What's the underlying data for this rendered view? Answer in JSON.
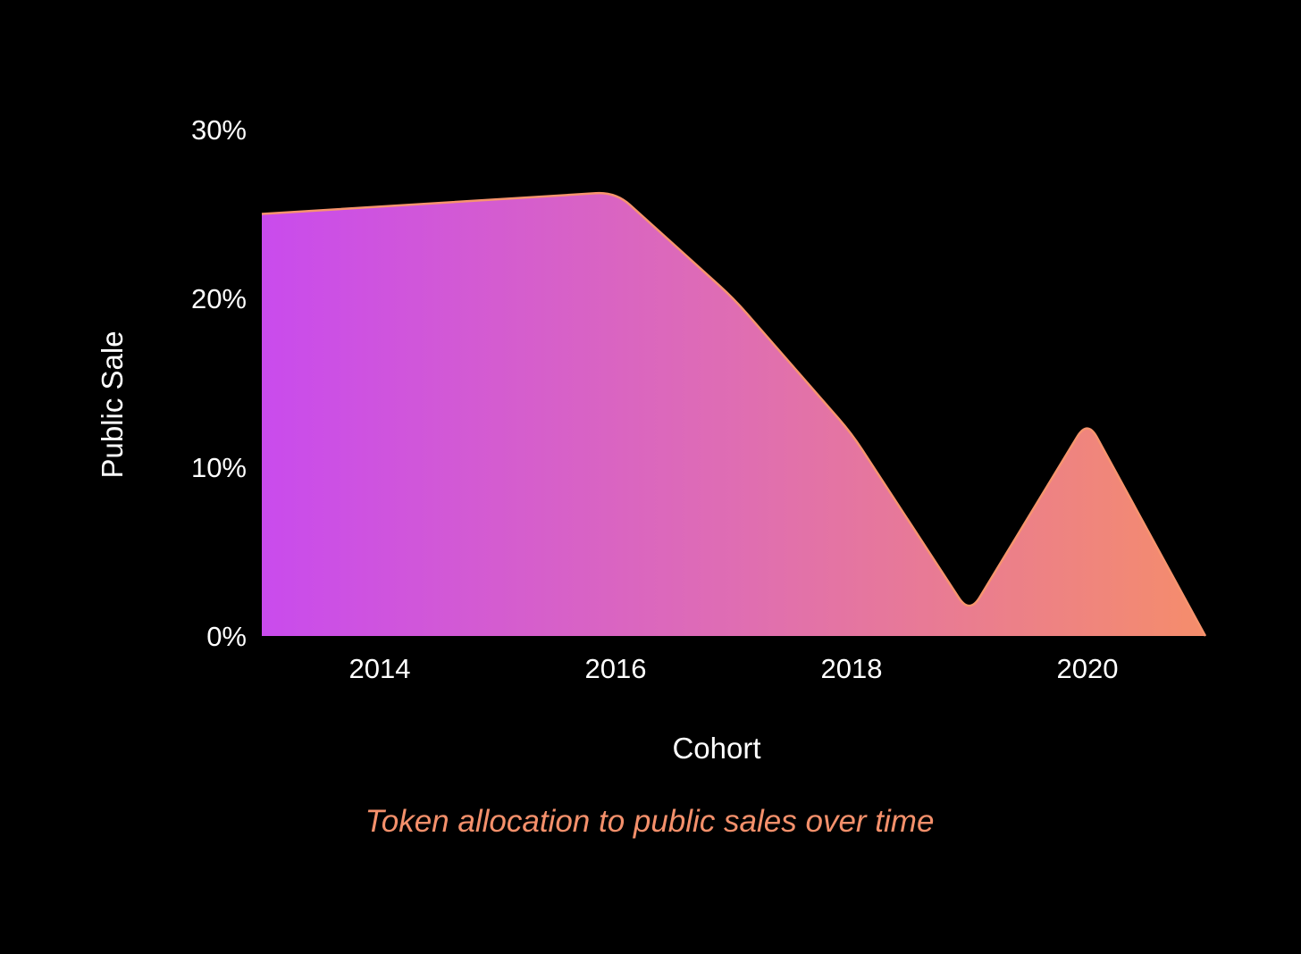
{
  "chart_data": {
    "type": "area",
    "x": [
      2013,
      2016,
      2017,
      2018,
      2019,
      2020,
      2021
    ],
    "series": [
      {
        "values": [
          25.0,
          26.3,
          20.0,
          12.0,
          1.3,
          12.8,
          0.0
        ]
      }
    ],
    "xticks": [
      2014,
      2016,
      2018,
      2020
    ],
    "xtick_labels": [
      "2014",
      "2016",
      "2018",
      "2020"
    ],
    "yticks": [
      0,
      10,
      20,
      30
    ],
    "ytick_labels": [
      "0%",
      "10%",
      "20%",
      "30%"
    ],
    "xlim": [
      2013,
      2021
    ],
    "ylim": [
      0,
      30
    ],
    "xlabel": "Cohort",
    "ylabel": "Public Sale",
    "caption": "Token allocation to public sales over time",
    "grid": false,
    "legend": "none",
    "colors": {
      "background": "#000000",
      "gradient_start": "#c94bed",
      "gradient_mid": "#df6db3",
      "gradient_end": "#f58d6b",
      "edge": "#f7946e",
      "text": "#ffffff",
      "caption": "#f4906b"
    }
  }
}
